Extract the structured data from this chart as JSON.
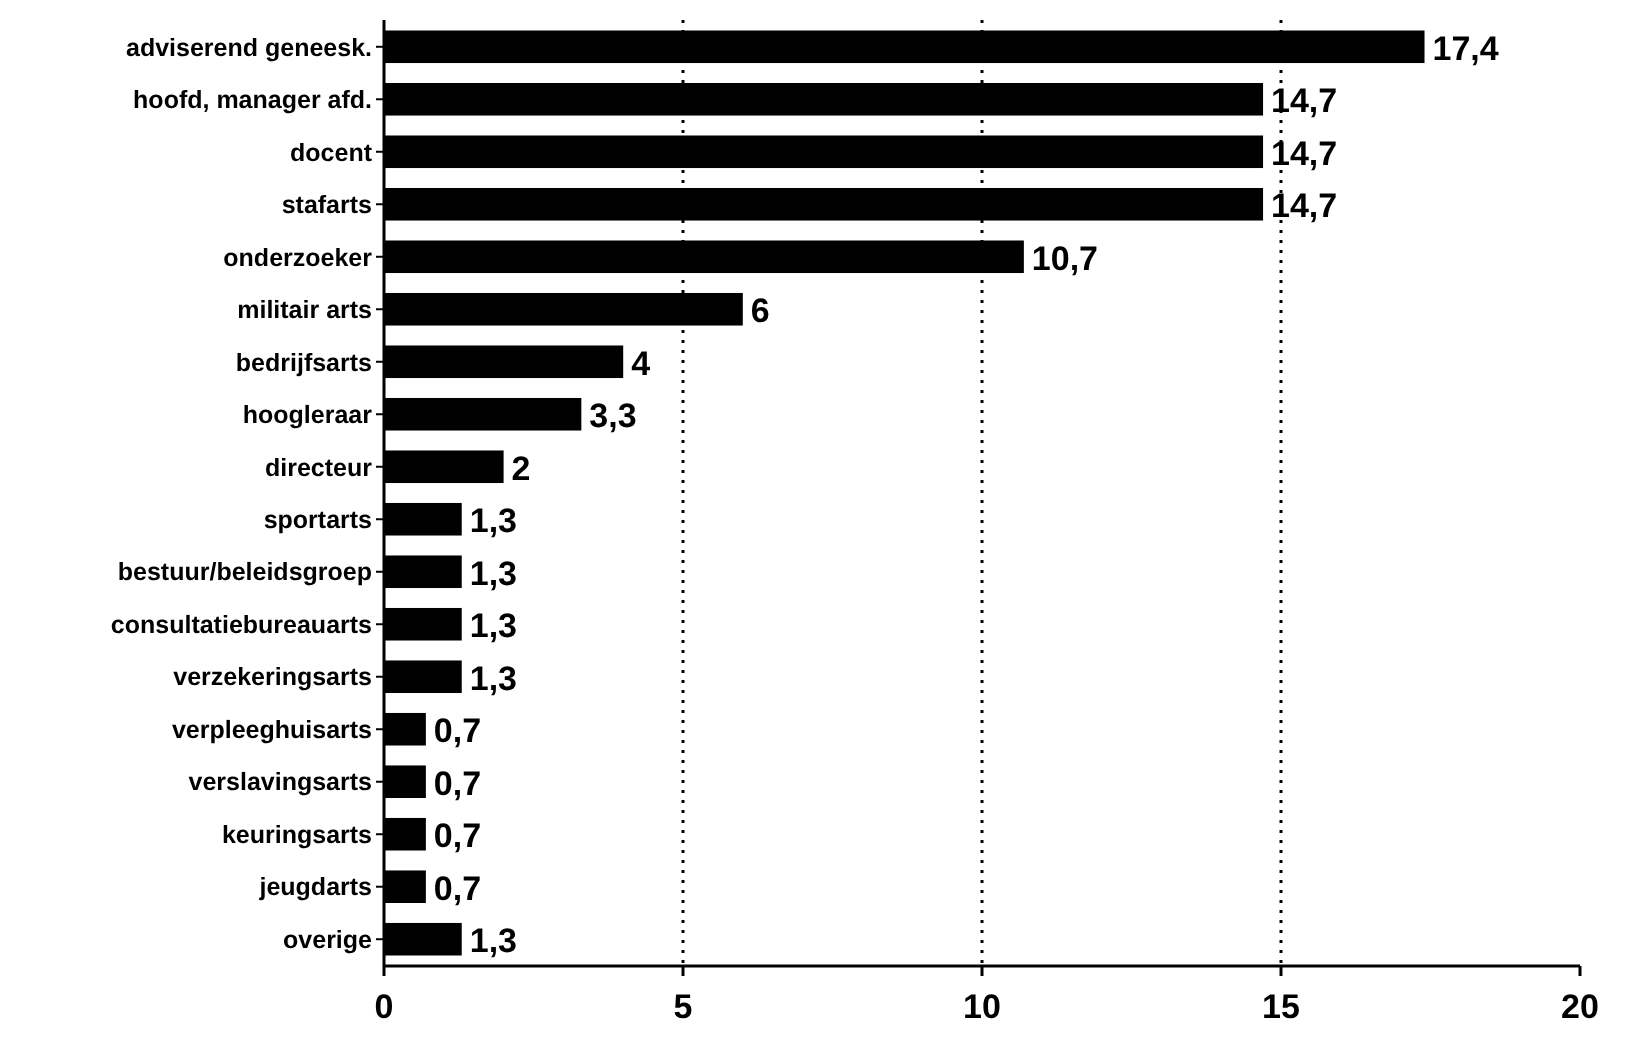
{
  "chart_data": {
    "type": "bar",
    "orientation": "horizontal",
    "categories": [
      "adviserend geneesk.",
      "hoofd, manager afd.",
      "docent",
      "stafarts",
      "onderzoeker",
      "militair arts",
      "bedrijfsarts",
      "hoogleraar",
      "directeur",
      "sportarts",
      "bestuur/beleidsgroep",
      "consultatiebureauarts",
      "verzekeringsarts",
      "verpleeghuisarts",
      "verslavingsarts",
      "keuringsarts",
      "jeugdarts",
      "overige"
    ],
    "values": [
      17.4,
      14.7,
      14.7,
      14.7,
      10.7,
      6,
      4,
      3.3,
      2,
      1.3,
      1.3,
      1.3,
      1.3,
      0.7,
      0.7,
      0.7,
      0.7,
      1.3
    ],
    "value_labels": [
      "17,4",
      "14,7",
      "14,7",
      "14,7",
      "10,7",
      "6",
      "4",
      "3,3",
      "2",
      "1,3",
      "1,3",
      "1,3",
      "1,3",
      "0,7",
      "0,7",
      "0,7",
      "0,7",
      "1,3"
    ],
    "color": "#000000",
    "xlim": [
      0,
      20
    ],
    "xticks": [
      0,
      5,
      10,
      15,
      20
    ],
    "grid": "x"
  }
}
